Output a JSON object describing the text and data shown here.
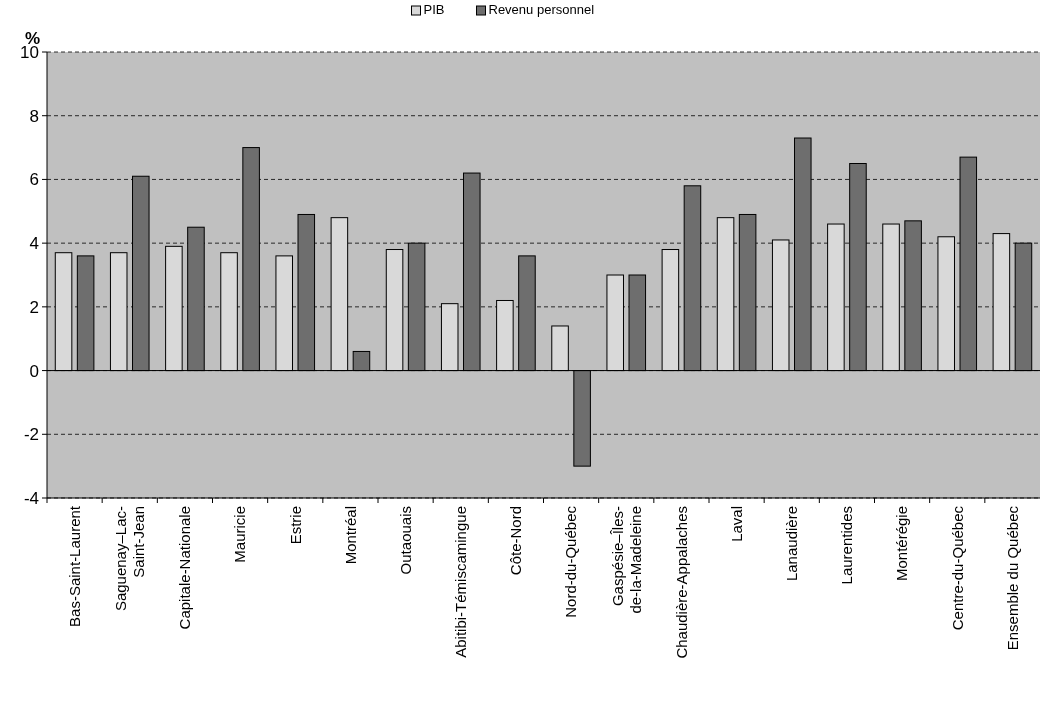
{
  "chart_data": {
    "type": "bar",
    "ylabel": "%",
    "categories": [
      "Bas-Saint-Laurent",
      "Saguenay–Lac-\nSaint-Jean",
      "Capitale-Nationale",
      "Mauricie",
      "Estrie",
      "Montréal",
      "Outaouais",
      "Abitibi-Témiscamingue",
      "Côte-Nord",
      "Nord-du-Québec",
      "Gaspésie–Îles-\nde-la-Madeleine",
      "Chaudière-Appalaches",
      "Laval",
      "Lanaudière",
      "Laurentides",
      "Montérégie",
      "Centre-du-Québec",
      "Ensemble du Québec"
    ],
    "series": [
      {
        "name": "PIB",
        "color": "#d9d9d9",
        "values": [
          3.7,
          3.7,
          3.9,
          3.7,
          3.6,
          4.8,
          3.8,
          2.1,
          2.2,
          1.4,
          3.0,
          3.8,
          4.8,
          4.1,
          4.6,
          4.6,
          4.2,
          4.3
        ]
      },
      {
        "name": "Revenu personnel",
        "color": "#6e6e6e",
        "values": [
          3.6,
          6.1,
          4.5,
          7.0,
          4.9,
          0.6,
          4.0,
          6.2,
          3.6,
          -3.0,
          3.0,
          5.8,
          4.9,
          7.3,
          6.5,
          4.7,
          6.7,
          4.0
        ]
      }
    ],
    "ylim": [
      -4,
      10
    ],
    "yticks": [
      -4,
      -2,
      0,
      2,
      4,
      6,
      8,
      10
    ],
    "grid": "y",
    "legend": "top"
  }
}
